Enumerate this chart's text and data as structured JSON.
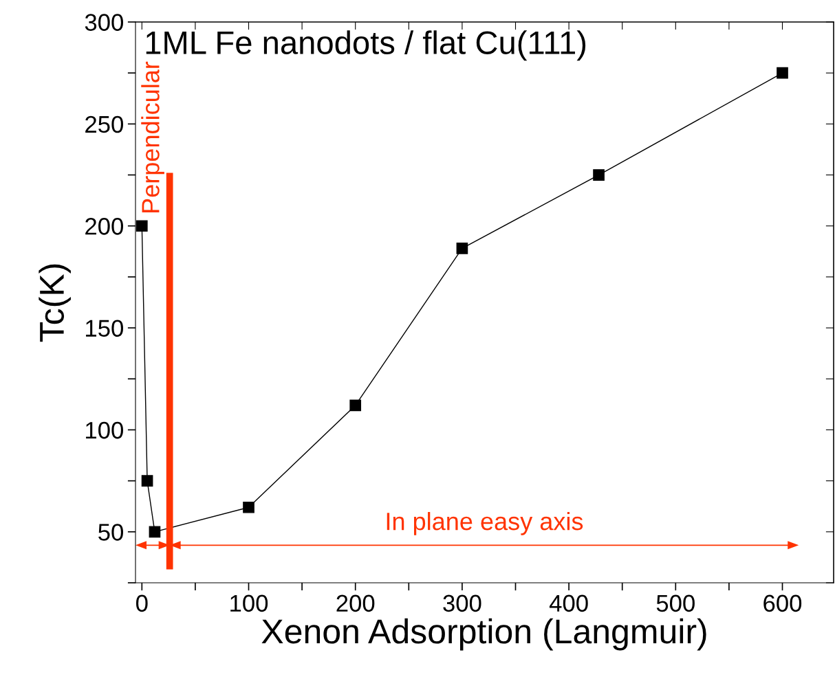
{
  "chart_data": {
    "type": "line",
    "title": "1ML Fe nanodots / flat Cu(111)",
    "xlabel": "Xenon Adsorption (Langmuir)",
    "ylabel": "Tc(K)",
    "x": [
      0,
      5,
      12,
      100,
      200,
      300,
      428,
      600
    ],
    "series": [
      {
        "color": "#000000",
        "values": [
          200,
          75,
          50,
          62,
          112,
          189,
          225,
          275
        ]
      }
    ],
    "annotations": [
      "In plane easy axis"
    ],
    "marker": "square",
    "line_style": "solid",
    "grid": false,
    "legend": false,
    "xlim": [
      -6,
      648
    ],
    "ylim": [
      25,
      300
    ],
    "xticks": [
      0,
      {
        "value": 50,
        "label": null
      },
      100,
      {
        "value": 150,
        "label": null
      },
      200,
      {
        "value": 250,
        "label": null
      },
      300,
      {
        "value": 350,
        "label": null
      },
      400,
      {
        "value": 450,
        "label": null
      },
      500,
      {
        "value": 550,
        "label": null
      },
      600
    ],
    "yticks": [
      {
        "value": 25,
        "label": null
      },
      50,
      {
        "value": 75,
        "label": null
      },
      100,
      {
        "value": 125,
        "label": null
      },
      150,
      {
        "value": 175,
        "label": null
      },
      200,
      {
        "value": 225,
        "label": null
      },
      250,
      {
        "value": 275,
        "label": null
      },
      300
    ],
    "ref_lines": [
      {
        "axis": "x",
        "value": 26,
        "label": "Perpendicular",
        "color": "#ff3300"
      }
    ]
  }
}
